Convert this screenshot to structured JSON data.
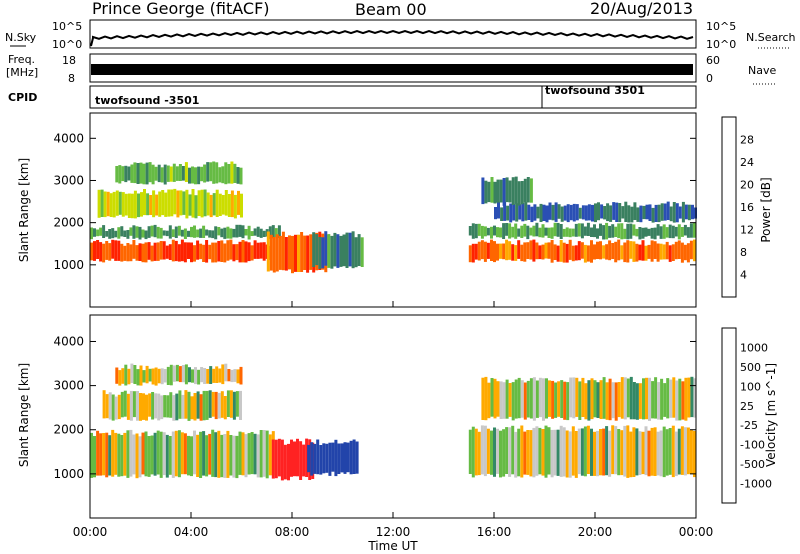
{
  "header": {
    "station": "Prince George (fitACF)",
    "beam": "Beam 00",
    "date": "20/Aug/2013"
  },
  "panels": {
    "nsky_label": "N.Sky",
    "nsky_ticks": [
      "10^5",
      "10^0"
    ],
    "nsearch_label": "N.Search",
    "nsearch_ticks": [
      "10^5",
      "10^0"
    ],
    "freq_label": "Freq.",
    "freq_unit": "[MHz]",
    "freq_ticks": [
      "18",
      "8"
    ],
    "nave_label": "Nave",
    "nave_ticks": [
      "60",
      "0"
    ],
    "cpid_label": "CPID",
    "cpid_left": "twofsound -3501",
    "cpid_right": "twofsound 3501"
  },
  "colors": {
    "power": [
      "#0000ff",
      "#2a4fb4",
      "#3a8060",
      "#66bb44",
      "#ccdd00",
      "#ffaa00",
      "#ff6600",
      "#ff2200",
      "#ee0000"
    ],
    "velocity": [
      "#2244aa",
      "#3366bb",
      "#338866",
      "#66bb44",
      "#c8c8c8",
      "#c8c8c8",
      "#ffaa00",
      "#ff6600",
      "#ff2222",
      "#ee0000"
    ]
  },
  "chart_data": [
    {
      "type": "heatmap",
      "title": "Power",
      "xlabel": "Time UT",
      "ylabel": "Slant Range [km]",
      "x_ticks": [
        "00:00",
        "04:00",
        "08:00",
        "12:00",
        "16:00",
        "20:00",
        "00:00"
      ],
      "xlim": [
        0,
        24
      ],
      "ylim": [
        0,
        4600
      ],
      "y_ticks": [
        1000,
        2000,
        3000,
        4000
      ],
      "colorbar_label": "Power [dB]",
      "colorbar_ticks": [
        4,
        8,
        12,
        16,
        20,
        24,
        28
      ],
      "bands": [
        {
          "t0": 0,
          "t1": 7.2,
          "r0": 1050,
          "r1": 1600,
          "level": 28
        },
        {
          "t0": 0,
          "t1": 7.5,
          "r0": 1600,
          "r1": 1950,
          "level": 12
        },
        {
          "t0": 0.3,
          "t1": 6,
          "r0": 2100,
          "r1": 2800,
          "level": 18
        },
        {
          "t0": 1,
          "t1": 6,
          "r0": 2900,
          "r1": 3450,
          "level": 14
        },
        {
          "t0": 7,
          "t1": 9.3,
          "r0": 800,
          "r1": 1800,
          "level": 26
        },
        {
          "t0": 8.8,
          "t1": 10.8,
          "r0": 900,
          "r1": 1800,
          "level": 10
        },
        {
          "t0": 15,
          "t1": 24,
          "r0": 1050,
          "r1": 1600,
          "level": 26
        },
        {
          "t0": 15,
          "t1": 24,
          "r0": 1600,
          "r1": 2000,
          "level": 12
        },
        {
          "t0": 16,
          "t1": 24,
          "r0": 2000,
          "r1": 2500,
          "level": 8
        },
        {
          "t0": 15.5,
          "t1": 17.5,
          "r0": 2400,
          "r1": 3100,
          "level": 10
        }
      ]
    },
    {
      "type": "heatmap",
      "title": "Velocity",
      "xlabel": "Time UT",
      "ylabel": "Slant Range [km]",
      "x_ticks": [
        "00:00",
        "04:00",
        "08:00",
        "12:00",
        "16:00",
        "20:00",
        "00:00"
      ],
      "xlim": [
        0,
        24
      ],
      "ylim": [
        0,
        4600
      ],
      "y_ticks": [
        1000,
        2000,
        3000,
        4000
      ],
      "colorbar_label": "Velocity [m s^-1]",
      "colorbar_ticks": [
        1000,
        500,
        100,
        25,
        -25,
        -100,
        -500,
        -1000
      ],
      "bands": [
        {
          "t0": 0,
          "t1": 7.3,
          "r0": 900,
          "r1": 2000,
          "level": 0
        },
        {
          "t0": 0.5,
          "t1": 6,
          "r0": 2200,
          "r1": 2900,
          "level": 0
        },
        {
          "t0": 1,
          "t1": 6,
          "r0": 3000,
          "r1": 3500,
          "level": 0
        },
        {
          "t0": 7.2,
          "t1": 8.8,
          "r0": 850,
          "r1": 1800,
          "level": -400
        },
        {
          "t0": 8.6,
          "t1": 10.6,
          "r0": 950,
          "r1": 1800,
          "level": 200
        },
        {
          "t0": 15,
          "t1": 24,
          "r0": 900,
          "r1": 2100,
          "level": 0
        },
        {
          "t0": 15.5,
          "t1": 24,
          "r0": 2200,
          "r1": 3200,
          "level": 0
        }
      ]
    }
  ]
}
